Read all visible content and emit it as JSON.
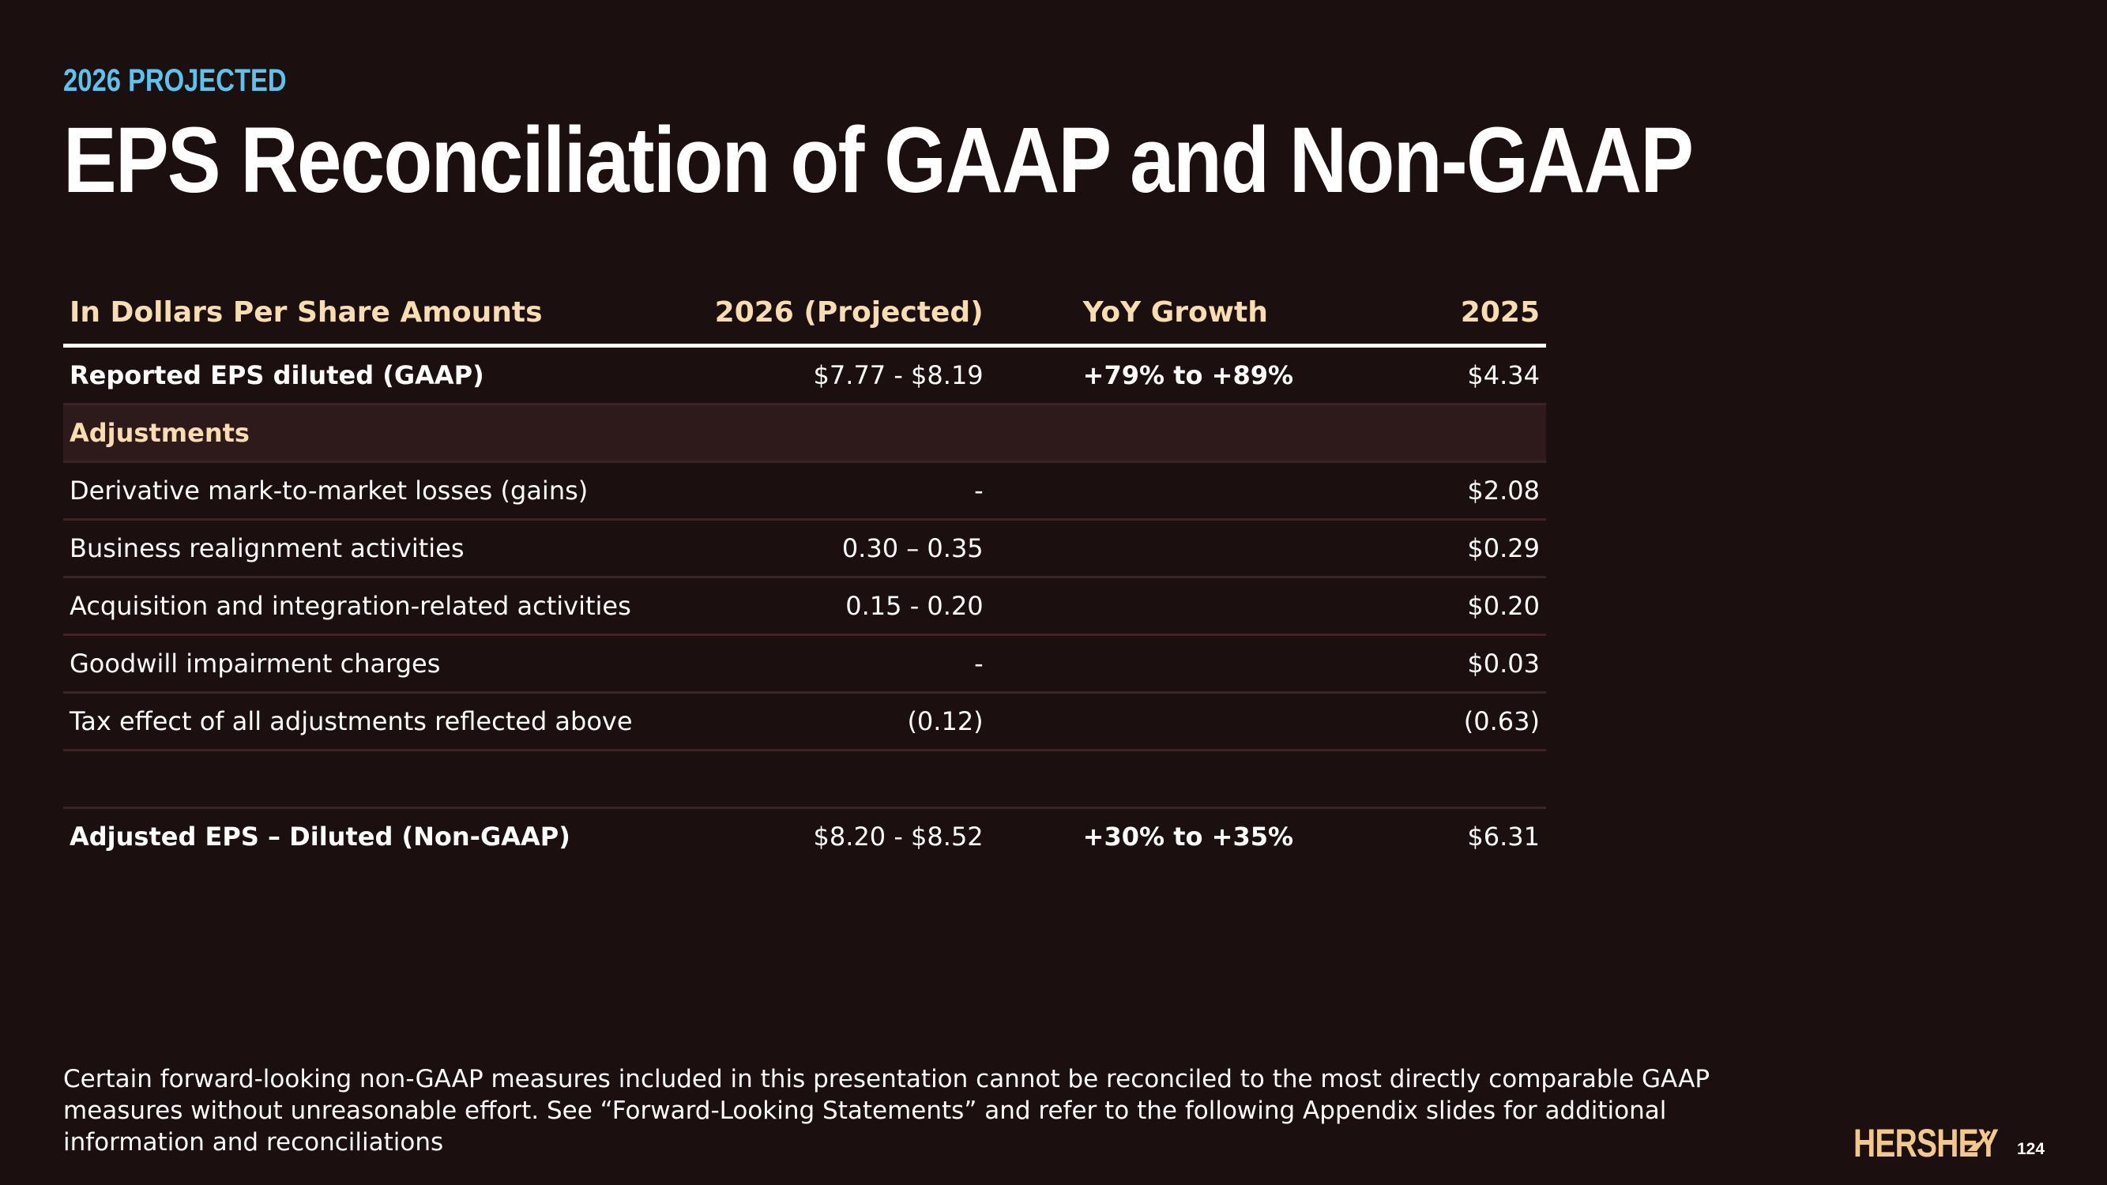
{
  "header": {
    "eyebrow": "2026 PROJECTED",
    "title": "EPS Reconciliation of GAAP and Non-GAAP"
  },
  "table": {
    "headers": [
      "In Dollars Per Share Amounts",
      "2026 (Projected)",
      "YoY Growth",
      "2025"
    ],
    "reported": {
      "label": "Reported EPS diluted (GAAP)",
      "projected": "$7.77 - $8.19",
      "growth": "+79% to +89%",
      "prior": "$4.34"
    },
    "section_label": "Adjustments",
    "rows": [
      {
        "label": "Derivative mark-to-market losses (gains)",
        "projected": "-",
        "growth": "",
        "prior": "$2.08"
      },
      {
        "label": "Business realignment activities",
        "projected": "0.30 – 0.35",
        "growth": "",
        "prior": "$0.29"
      },
      {
        "label": "Acquisition and integration-related activities",
        "projected": "0.15 - 0.20",
        "growth": "",
        "prior": "$0.20"
      },
      {
        "label": "Goodwill impairment charges",
        "projected": "-",
        "growth": "",
        "prior": "$0.03"
      },
      {
        "label": "Tax effect of all adjustments reflected above",
        "projected": "(0.12)",
        "growth": "",
        "prior": "(0.63)"
      }
    ],
    "adjusted": {
      "label": "Adjusted EPS – Diluted (Non-GAAP)",
      "projected": "$8.20 - $8.52",
      "growth": "+30% to +35%",
      "prior": "$6.31"
    }
  },
  "footnote": "Certain forward-looking non-GAAP measures included in this presentation cannot be reconciled to the most directly comparable GAAP measures without unreasonable effort. See “Forward-Looking Statements” and refer to the following Appendix slides for additional information and reconciliations",
  "footer": {
    "logo_text": "HERSHEY",
    "page_number": "124"
  },
  "colors": {
    "background": "#1c0f0f",
    "accent_blue": "#5bc4ee",
    "accent_gold": "#f7ddb0",
    "logo_gold": "#f2c98a"
  }
}
